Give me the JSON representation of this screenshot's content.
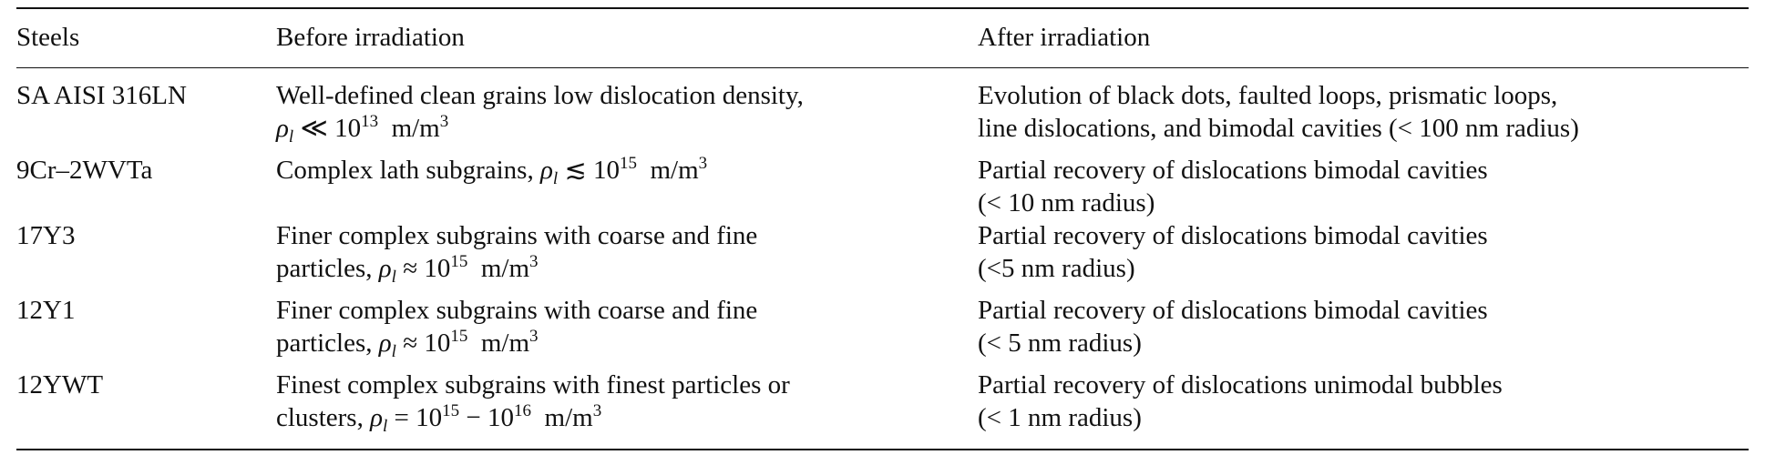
{
  "table": {
    "headers": [
      "Steels",
      "Before irradiation",
      "After irradiation"
    ],
    "rows": [
      {
        "steel": "SA AISI 316LN",
        "before": {
          "text": "Well-defined clean grains low dislocation density,",
          "rel": "≪",
          "exp": "13"
        },
        "after": [
          "Evolution of black dots, faulted loops, prismatic loops,",
          "line dislocations, and bimodal cavities (< 100 nm radius)"
        ]
      },
      {
        "steel": "9Cr–2WVTa",
        "before": {
          "text": "Complex lath subgrains,",
          "rel": "≲",
          "exp": "15"
        },
        "after": [
          "Partial recovery of dislocations bimodal cavities",
          "(< 10 nm radius)"
        ]
      },
      {
        "steel": "17Y3",
        "before": {
          "line1": "Finer complex subgrains with coarse and fine",
          "text": "particles,",
          "rel": "≈",
          "exp": "15"
        },
        "after": [
          "Partial recovery of dislocations bimodal cavities",
          "(<5 nm radius)"
        ]
      },
      {
        "steel": "12Y1",
        "before": {
          "line1": "Finer complex subgrains with coarse and fine",
          "text": "particles,",
          "rel": "≈",
          "exp": "15"
        },
        "after": [
          "Partial recovery of dislocations bimodal cavities",
          "(< 5 nm radius)"
        ]
      },
      {
        "steel": "12YWT",
        "before": {
          "line1": "Finest complex subgrains with finest particles or",
          "text": "clusters,",
          "rel": "=",
          "exp": "15",
          "exp2": "16"
        },
        "after": [
          "Partial recovery of dislocations unimodal bubbles",
          "(< 1 nm radius)"
        ]
      }
    ],
    "symbols": {
      "rho": "ρ",
      "rho_sub": "l",
      "base": "10",
      "unit": "m/m",
      "unit_exp": "3",
      "range_dash": "−"
    }
  }
}
